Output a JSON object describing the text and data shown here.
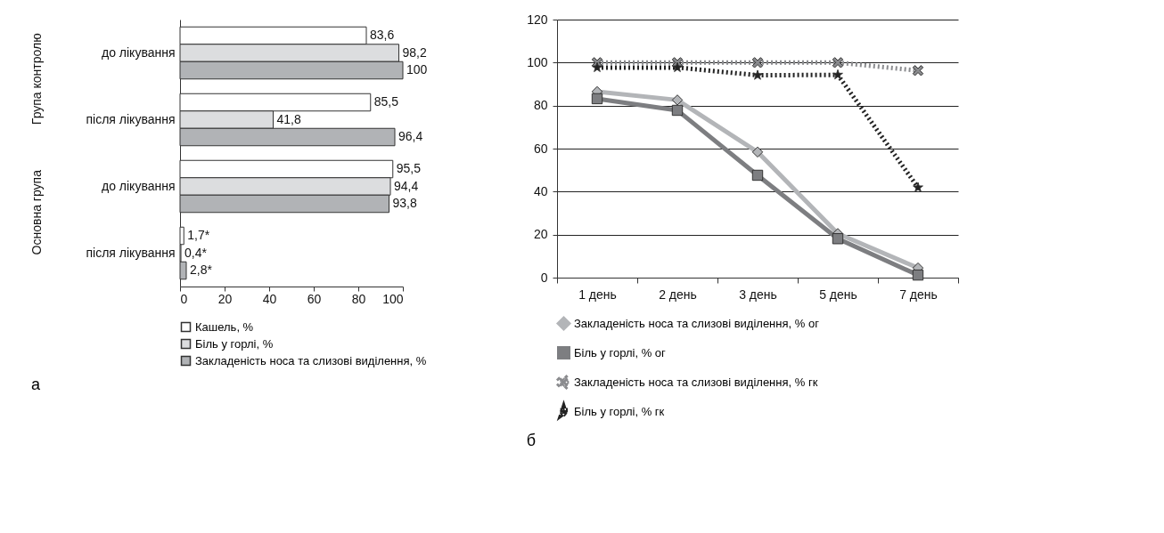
{
  "chart_data": [
    {
      "type": "bar",
      "title": "а",
      "orientation": "horizontal",
      "categories": [
        "до лікування",
        "після лікування",
        "до лікування",
        "після лікування"
      ],
      "annotations": [
        "Група контролю",
        "Основна група"
      ],
      "xlim": [
        0,
        100
      ],
      "xticks": [
        0,
        20,
        40,
        60,
        80,
        100
      ],
      "legend": "bottom",
      "series": [
        {
          "name": "Кашель, %",
          "color": "#ffffff",
          "values": [
            83.6,
            85.5,
            95.5,
            1.7
          ],
          "value_labels": [
            "83,6",
            "85,5",
            "95,5",
            "1,7*"
          ]
        },
        {
          "name": "Біль у горлі, %",
          "color": "#dcdddf",
          "values": [
            98.2,
            41.8,
            94.4,
            0.4
          ],
          "value_labels": [
            "98,2",
            "41,8",
            "94,4",
            "0,4*"
          ]
        },
        {
          "name": "Закладеність носа та слизові виділення, %",
          "color": "#b1b3b6",
          "values": [
            100,
            96.4,
            93.8,
            2.8
          ],
          "value_labels": [
            "100",
            "96,4",
            "93,8",
            "2,8*"
          ]
        }
      ]
    },
    {
      "type": "line",
      "title": "б",
      "categories": [
        "1 день",
        "2 день",
        "3 день",
        "5 день",
        "7 день"
      ],
      "ylim": [
        0,
        120
      ],
      "yticks": [
        0,
        20,
        40,
        60,
        80,
        100,
        120
      ],
      "grid": "y",
      "legend": "bottom",
      "series": [
        {
          "name": "Закладеність носа та слизові виділення, % ог",
          "color": "#b3b5b8",
          "marker": "diamond",
          "line_style": "solid",
          "values": [
            86.5,
            82.6,
            58.4,
            20.5,
            4.5
          ]
        },
        {
          "name": "Біль у горлі, % ог",
          "color": "#7d7e81",
          "marker": "square",
          "line_style": "solid",
          "values": [
            83.2,
            77.8,
            47.6,
            18.1,
            1.2
          ]
        },
        {
          "name": "Закладеність носа та слизові виділення, % гк",
          "color": "#8a8b8e",
          "marker": "cross",
          "line_style": "dotted",
          "values": [
            100,
            100,
            100,
            100,
            96.3
          ]
        },
        {
          "name": "Біль у горлі, % гк",
          "color": "#222222",
          "marker": "star",
          "line_style": "dotted",
          "values": [
            97.7,
            97.7,
            94.1,
            94.3,
            41.9
          ]
        }
      ]
    }
  ]
}
